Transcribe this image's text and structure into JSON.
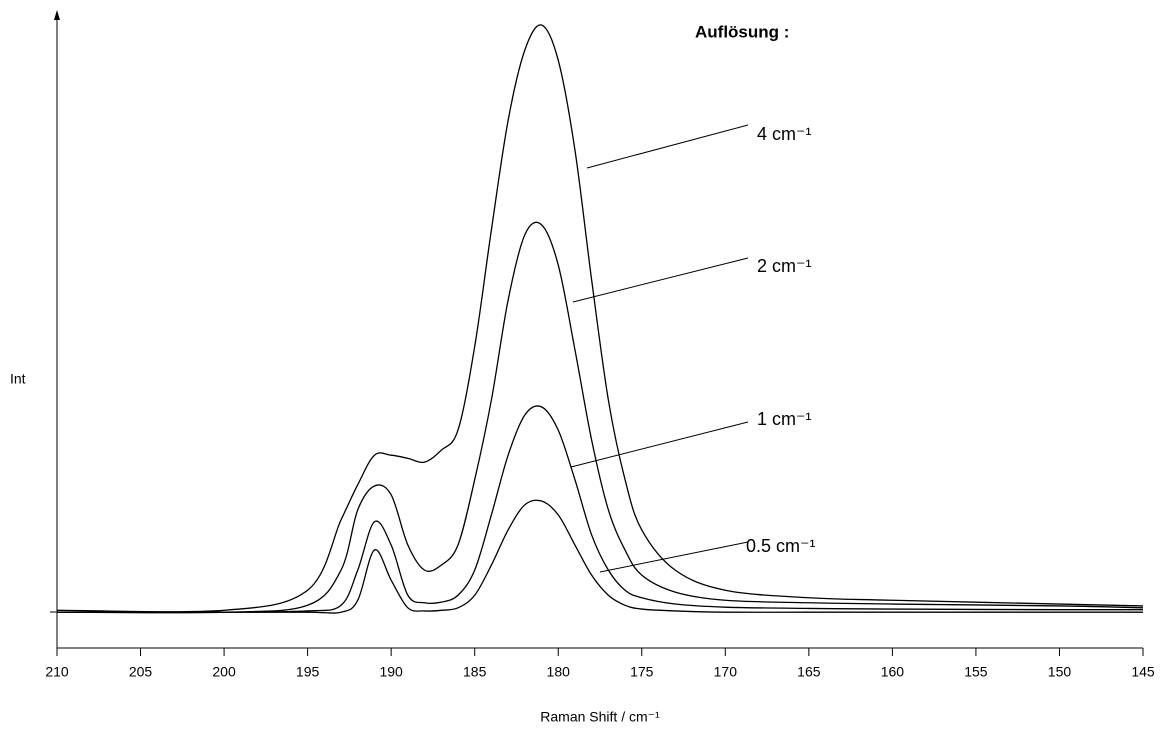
{
  "chart_data": {
    "type": "line",
    "annotation_title": "Auflösung :",
    "xlabel": "Raman Shift / cm⁻¹",
    "ylabel": "Int",
    "x": [
      210,
      200,
      195,
      193,
      192,
      191,
      190,
      189,
      188,
      187,
      186,
      185,
      184,
      183,
      182,
      181,
      180,
      179,
      178,
      177,
      176,
      175,
      173,
      170,
      165,
      160,
      150,
      145
    ],
    "xlim": [
      210,
      145
    ],
    "xticks": [
      210,
      205,
      200,
      195,
      190,
      185,
      180,
      175,
      170,
      165,
      160,
      155,
      150,
      145
    ],
    "ylim": [
      0,
      100
    ],
    "series": [
      {
        "name": "4 cm⁻¹",
        "color": "#000000",
        "values": [
          6.0,
          6.0,
          9.2,
          20.4,
          26,
          30.7,
          30.7,
          30.2,
          29.6,
          31.5,
          34.7,
          48,
          66.6,
          84,
          95.2,
          99.2,
          93.6,
          79.3,
          58.6,
          39.5,
          26.8,
          18.8,
          12.4,
          9.2,
          8.0,
          7.6,
          7.0,
          6.7
        ]
      },
      {
        "name": "2 cm⁻¹",
        "color": "#000000",
        "values": [
          5.7,
          5.7,
          6.8,
          12.4,
          22,
          25.8,
          24.4,
          16.4,
          12.4,
          13.2,
          16.4,
          26.8,
          39.5,
          55.4,
          65.8,
          67.4,
          61,
          47.5,
          33.1,
          22,
          15.6,
          11.6,
          8.9,
          7.6,
          7.2,
          7.0,
          6.7,
          6.4
        ]
      },
      {
        "name": "1 cm⁻¹",
        "color": "#000000",
        "values": [
          5.7,
          5.7,
          5.9,
          6.8,
          12.4,
          20.1,
          16.4,
          8.4,
          7.2,
          7.3,
          8.4,
          12.4,
          21.2,
          30.7,
          37.1,
          38.4,
          34.7,
          26.8,
          18,
          12.4,
          9.2,
          8.0,
          7.0,
          6.5,
          6.3,
          6.2,
          6.1,
          6.1
        ]
      },
      {
        "name": "0.5 cm⁻¹",
        "color": "#000000",
        "values": [
          5.7,
          5.7,
          5.7,
          5.7,
          7.6,
          15.6,
          10.8,
          6.4,
          5.9,
          6.0,
          6.4,
          8.4,
          13.2,
          18.8,
          22.8,
          23.4,
          21.2,
          16.4,
          11.6,
          8.4,
          6.8,
          6.2,
          5.9,
          5.7,
          5.7,
          5.7,
          5.7,
          5.7
        ]
      }
    ]
  }
}
